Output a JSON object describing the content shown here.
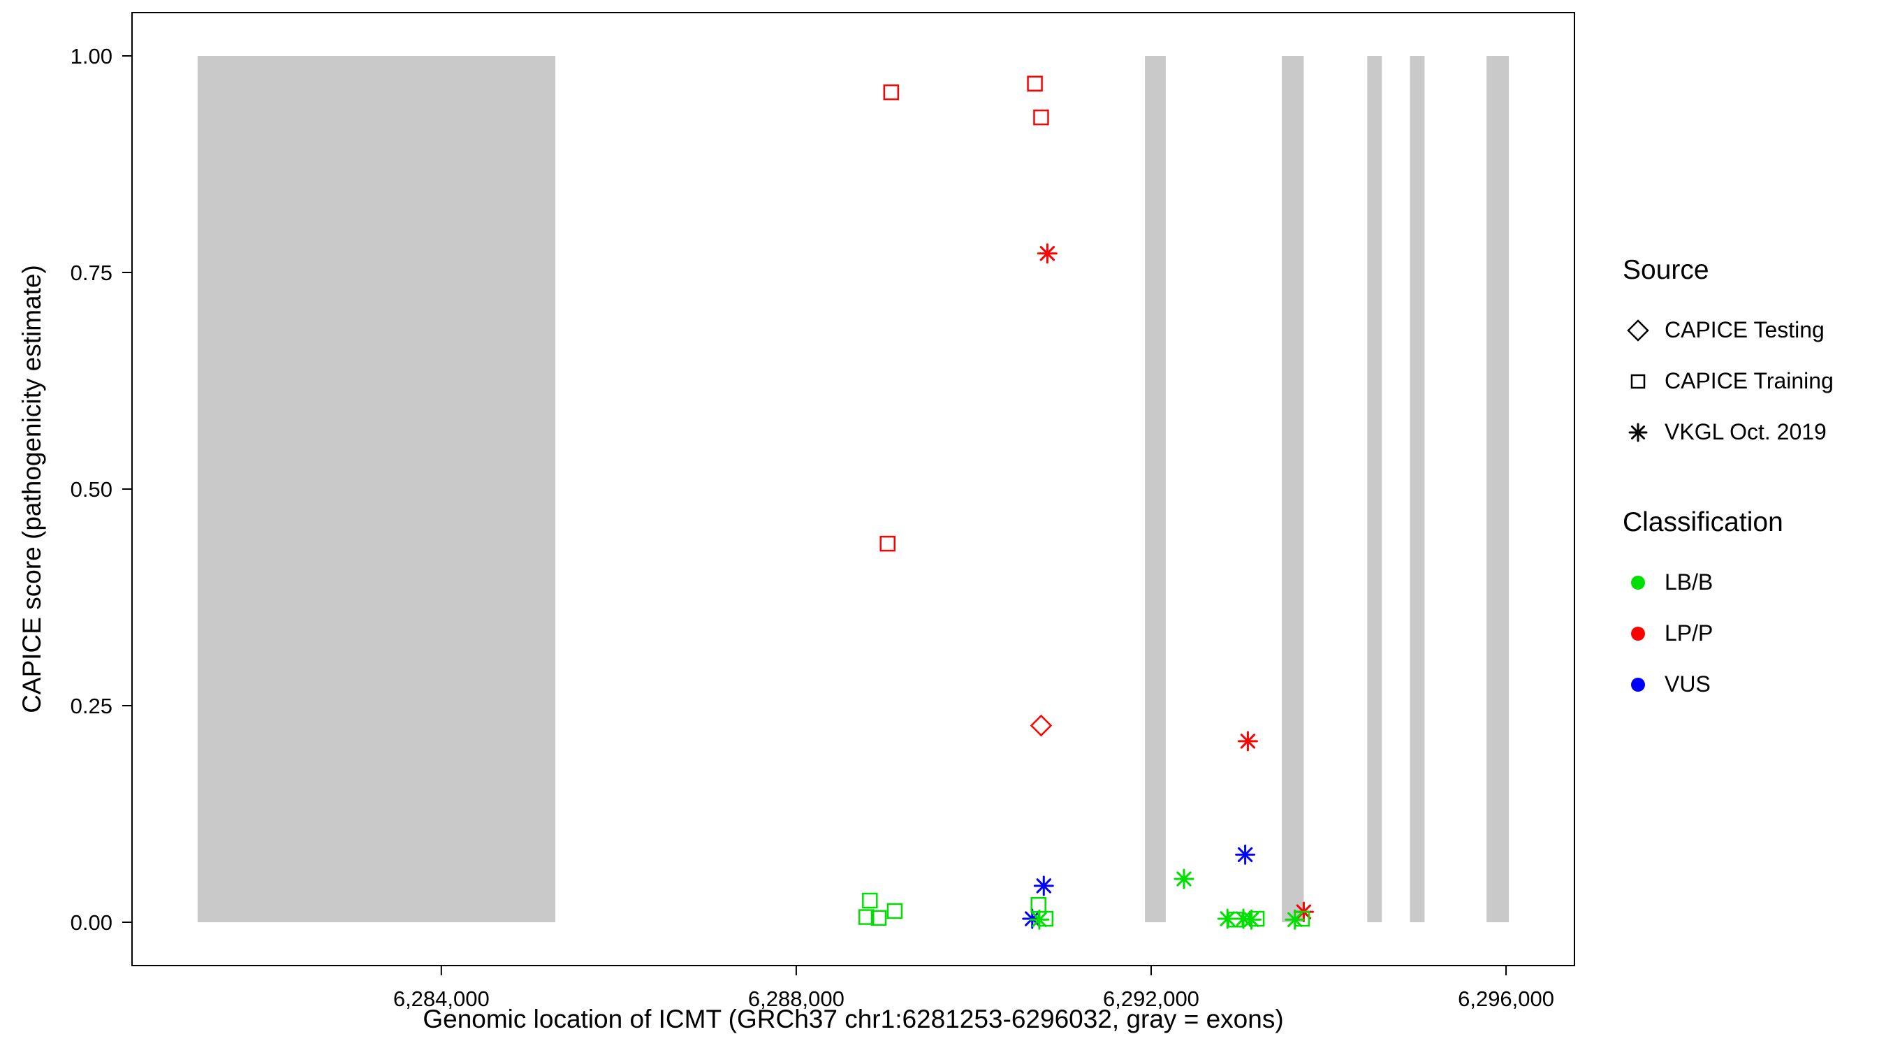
{
  "figure": {
    "background": "#FFFFFF"
  },
  "chart_data": {
    "type": "scatter",
    "title": "",
    "xlabel": "Genomic location of ICMT (GRCh37 chr1:6281253-6296032, gray = exons)",
    "ylabel": "CAPICE score (pathogenicity estimate)",
    "x_domain": [
      6280514,
      6296771
    ],
    "y_domain": [
      -0.05,
      1.05
    ],
    "grid": "off",
    "legend_position": "right",
    "x_ticks": [
      {
        "value": 6284000,
        "label": "6,284,000"
      },
      {
        "value": 6288000,
        "label": "6,288,000"
      },
      {
        "value": 6292000,
        "label": "6,292,000"
      },
      {
        "value": 6296000,
        "label": "6,296,000"
      }
    ],
    "y_ticks": [
      {
        "value": 0.0,
        "label": "0.00"
      },
      {
        "value": 0.25,
        "label": "0.25"
      },
      {
        "value": 0.5,
        "label": "0.50"
      },
      {
        "value": 0.75,
        "label": "0.75"
      },
      {
        "value": 1.0,
        "label": "1.00"
      }
    ],
    "exon_color": "#C9C9C9",
    "exons": [
      {
        "start": 6281253,
        "end": 6285285
      },
      {
        "start": 6291930,
        "end": 6292165
      },
      {
        "start": 6293472,
        "end": 6293720
      },
      {
        "start": 6294435,
        "end": 6294600
      },
      {
        "start": 6294917,
        "end": 6295082
      },
      {
        "start": 6295780,
        "end": 6296032
      }
    ],
    "classification_colors": {
      "LB/B": "#00E000",
      "LP/P": "#FF0000",
      "VUS": "#0000FF"
    },
    "source_shapes": {
      "CAPICE Testing": "diamond",
      "CAPICE Training": "square",
      "VKGL Oct. 2019": "asterisk"
    },
    "points": [
      {
        "x": 6289070,
        "y": 0.958,
        "source": "CAPICE Training",
        "classification": "LP/P"
      },
      {
        "x": 6290690,
        "y": 0.968,
        "source": "CAPICE Training",
        "classification": "LP/P"
      },
      {
        "x": 6290760,
        "y": 0.929,
        "source": "CAPICE Training",
        "classification": "LP/P"
      },
      {
        "x": 6289030,
        "y": 0.437,
        "source": "CAPICE Training",
        "classification": "LP/P"
      },
      {
        "x": 6290830,
        "y": 0.772,
        "source": "VKGL Oct. 2019",
        "classification": "LP/P"
      },
      {
        "x": 6290760,
        "y": 0.227,
        "source": "CAPICE Testing",
        "classification": "LP/P"
      },
      {
        "x": 6293090,
        "y": 0.209,
        "source": "VKGL Oct. 2019",
        "classification": "LP/P"
      },
      {
        "x": 6293720,
        "y": 0.012,
        "source": "VKGL Oct. 2019",
        "classification": "LP/P"
      },
      {
        "x": 6290790,
        "y": 0.042,
        "source": "VKGL Oct. 2019",
        "classification": "VUS"
      },
      {
        "x": 6293060,
        "y": 0.078,
        "source": "VKGL Oct. 2019",
        "classification": "VUS"
      },
      {
        "x": 6290660,
        "y": 0.004,
        "source": "VKGL Oct. 2019",
        "classification": "VUS"
      },
      {
        "x": 6288830,
        "y": 0.025,
        "source": "CAPICE Training",
        "classification": "LB/B"
      },
      {
        "x": 6288790,
        "y": 0.006,
        "source": "CAPICE Training",
        "classification": "LB/B"
      },
      {
        "x": 6288930,
        "y": 0.005,
        "source": "CAPICE Training",
        "classification": "LB/B"
      },
      {
        "x": 6289110,
        "y": 0.013,
        "source": "CAPICE Training",
        "classification": "LB/B"
      },
      {
        "x": 6290730,
        "y": 0.02,
        "source": "CAPICE Training",
        "classification": "LB/B"
      },
      {
        "x": 6290810,
        "y": 0.004,
        "source": "CAPICE Training",
        "classification": "LB/B"
      },
      {
        "x": 6290740,
        "y": 0.003,
        "source": "VKGL Oct. 2019",
        "classification": "LB/B"
      },
      {
        "x": 6292370,
        "y": 0.05,
        "source": "VKGL Oct. 2019",
        "classification": "LB/B"
      },
      {
        "x": 6292860,
        "y": 0.004,
        "source": "VKGL Oct. 2019",
        "classification": "LB/B"
      },
      {
        "x": 6292950,
        "y": 0.003,
        "source": "CAPICE Training",
        "classification": "LB/B"
      },
      {
        "x": 6293040,
        "y": 0.004,
        "source": "VKGL Oct. 2019",
        "classification": "LB/B"
      },
      {
        "x": 6293130,
        "y": 0.003,
        "source": "VKGL Oct. 2019",
        "classification": "LB/B"
      },
      {
        "x": 6293190,
        "y": 0.004,
        "source": "CAPICE Training",
        "classification": "LB/B"
      },
      {
        "x": 6293620,
        "y": 0.003,
        "source": "VKGL Oct. 2019",
        "classification": "LB/B"
      },
      {
        "x": 6293700,
        "y": 0.004,
        "source": "CAPICE Training",
        "classification": "LB/B"
      }
    ],
    "legend": {
      "source_title": "Source",
      "source_items": [
        {
          "label": "CAPICE Testing",
          "shape": "diamond"
        },
        {
          "label": "CAPICE Training",
          "shape": "square"
        },
        {
          "label": "VKGL Oct. 2019",
          "shape": "asterisk"
        }
      ],
      "classification_title": "Classification",
      "classification_items": [
        {
          "label": "LB/B",
          "color": "#00E000"
        },
        {
          "label": "LP/P",
          "color": "#FF0000"
        },
        {
          "label": "VUS",
          "color": "#0000FF"
        }
      ]
    }
  }
}
